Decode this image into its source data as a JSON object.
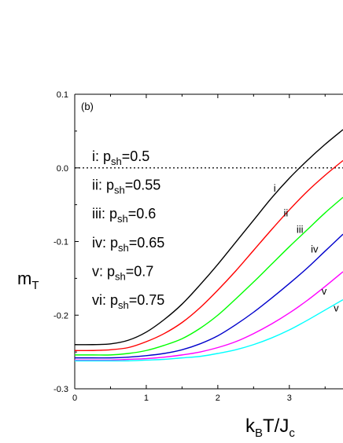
{
  "chart_data": {
    "type": "line",
    "panel_label": "(b)",
    "xlabel": {
      "main": "k",
      "sub1": "B",
      "mid": "T/J",
      "sub2": "c"
    },
    "ylabel": {
      "main": "m",
      "sub": "T"
    },
    "xlim": [
      0,
      3.75
    ],
    "ylim": [
      -0.3,
      0.1
    ],
    "x_ticks": [
      0,
      1,
      2,
      3
    ],
    "x_tick_labels": [
      "0",
      "1",
      "2",
      "3"
    ],
    "y_ticks": [
      0.1,
      0.0,
      -0.1,
      -0.2,
      -0.3
    ],
    "y_tick_labels": [
      "0.1",
      "0.0",
      "-0.1",
      "-0.2",
      "-0.3"
    ],
    "reference_line": {
      "y": 0.0,
      "style": "dotted"
    },
    "legend": [
      {
        "roman": "i",
        "text": "i: p",
        "sub": "sh",
        "value": "=0.5"
      },
      {
        "roman": "ii",
        "text": "ii: p",
        "sub": "sh",
        "value": "=0.55"
      },
      {
        "roman": "iii",
        "text": "iii: p",
        "sub": "sh",
        "value": "=0.6"
      },
      {
        "roman": "iv",
        "text": "iv: p",
        "sub": "sh",
        "value": "=0.65"
      },
      {
        "roman": "v",
        "text": "v: p",
        "sub": "sh",
        "value": "=0.7"
      },
      {
        "roman": "vi",
        "text": "vi: p",
        "sub": "sh",
        "value": "=0.75"
      }
    ],
    "series": [
      {
        "label": "i",
        "color": "#000000",
        "x": [
          0.0,
          0.25,
          0.5,
          0.75,
          1.0,
          1.25,
          1.5,
          1.75,
          2.0,
          2.25,
          2.5,
          2.75,
          3.0,
          3.25,
          3.5,
          3.75
        ],
        "y": [
          -0.24,
          -0.24,
          -0.239,
          -0.234,
          -0.223,
          -0.206,
          -0.185,
          -0.159,
          -0.131,
          -0.101,
          -0.071,
          -0.041,
          -0.014,
          0.01,
          0.032,
          0.052
        ]
      },
      {
        "label": "ii",
        "color": "#ff0000",
        "x": [
          0.0,
          0.25,
          0.5,
          0.75,
          1.0,
          1.25,
          1.5,
          1.75,
          2.0,
          2.25,
          2.5,
          2.75,
          3.0,
          3.25,
          3.5,
          3.75
        ],
        "y": [
          -0.248,
          -0.248,
          -0.247,
          -0.244,
          -0.236,
          -0.225,
          -0.21,
          -0.19,
          -0.166,
          -0.14,
          -0.112,
          -0.084,
          -0.057,
          -0.032,
          -0.01,
          0.01
        ]
      },
      {
        "label": "iii",
        "color": "#00ff00",
        "x": [
          0.0,
          0.25,
          0.5,
          0.75,
          1.0,
          1.25,
          1.5,
          1.75,
          2.0,
          2.25,
          2.5,
          2.75,
          3.0,
          3.25,
          3.5,
          3.75
        ],
        "y": [
          -0.254,
          -0.254,
          -0.254,
          -0.252,
          -0.248,
          -0.241,
          -0.232,
          -0.218,
          -0.2,
          -0.178,
          -0.155,
          -0.131,
          -0.107,
          -0.084,
          -0.061,
          -0.04
        ]
      },
      {
        "label": "iv",
        "color": "#0000cc",
        "x": [
          0.0,
          0.25,
          0.5,
          0.75,
          1.0,
          1.25,
          1.5,
          1.75,
          2.0,
          2.25,
          2.5,
          2.75,
          3.0,
          3.25,
          3.5,
          3.75
        ],
        "y": [
          -0.258,
          -0.258,
          -0.258,
          -0.257,
          -0.255,
          -0.252,
          -0.247,
          -0.239,
          -0.228,
          -0.213,
          -0.196,
          -0.177,
          -0.157,
          -0.136,
          -0.113,
          -0.09
        ]
      },
      {
        "label": "v",
        "color": "#ff00ff",
        "x": [
          0.0,
          0.25,
          0.5,
          0.75,
          1.0,
          1.25,
          1.5,
          1.75,
          2.0,
          2.25,
          2.5,
          2.75,
          3.0,
          3.25,
          3.5,
          3.75
        ],
        "y": [
          -0.261,
          -0.261,
          -0.261,
          -0.26,
          -0.259,
          -0.257,
          -0.254,
          -0.25,
          -0.244,
          -0.236,
          -0.225,
          -0.212,
          -0.197,
          -0.18,
          -0.161,
          -0.141
        ]
      },
      {
        "label": "vi",
        "color": "#00ffff",
        "x": [
          0.0,
          0.25,
          0.5,
          0.75,
          1.0,
          1.25,
          1.5,
          1.75,
          2.0,
          2.25,
          2.5,
          2.75,
          3.0,
          3.25,
          3.5,
          3.75
        ],
        "y": [
          -0.262,
          -0.262,
          -0.262,
          -0.262,
          -0.261,
          -0.26,
          -0.258,
          -0.256,
          -0.252,
          -0.247,
          -0.24,
          -0.231,
          -0.22,
          -0.207,
          -0.193,
          -0.179
        ]
      }
    ],
    "curve_label_positions": [
      {
        "text": "i",
        "x": 2.78,
        "y": -0.032
      },
      {
        "text": "ii",
        "x": 2.92,
        "y": -0.066
      },
      {
        "text": "iii",
        "x": 3.1,
        "y": -0.088
      },
      {
        "text": "iv",
        "x": 3.3,
        "y": -0.115
      },
      {
        "text": "v",
        "x": 3.45,
        "y": -0.172
      },
      {
        "text": "v",
        "x": 3.62,
        "y": -0.195
      }
    ],
    "grid": false
  }
}
